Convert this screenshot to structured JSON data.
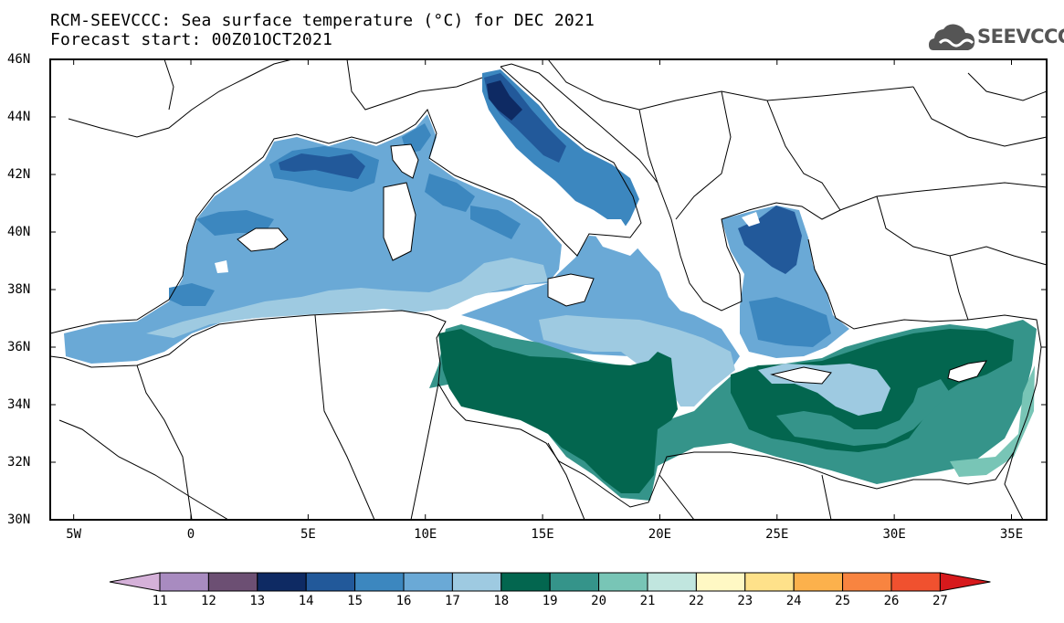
{
  "title": {
    "line1": "RCM-SEEVCCC: Sea surface temperature (°C) for DEC 2021",
    "line2": "Forecast start: 00Z01OCT2021"
  },
  "logo": {
    "text": "SEEVCCC",
    "icon": "cloud-icon"
  },
  "map": {
    "lat_labels": [
      "46N",
      "44N",
      "42N",
      "40N",
      "38N",
      "36N",
      "34N",
      "32N",
      "30N"
    ],
    "lon_labels": [
      "5W",
      "0",
      "5E",
      "10E",
      "15E",
      "20E",
      "25E",
      "30E",
      "35E"
    ],
    "extent": {
      "lon_min": -6,
      "lon_max": 36.5,
      "lat_min": 30,
      "lat_max": 46
    }
  },
  "colorbar": {
    "labels": [
      "11",
      "12",
      "13",
      "14",
      "15",
      "16",
      "17",
      "18",
      "19",
      "20",
      "21",
      "22",
      "23",
      "24",
      "25",
      "26",
      "27"
    ],
    "colors": [
      "#d5b1d9",
      "#a88bc0",
      "#6c4f73",
      "#0e2a63",
      "#22599a",
      "#3c87bf",
      "#6aa9d6",
      "#9ecae1",
      "#03664f",
      "#35948a",
      "#78c5b6",
      "#c1e6df",
      "#fff8c4",
      "#fee18a",
      "#fcb14c",
      "#f88440",
      "#f0512f",
      "#d7191c"
    ]
  }
}
